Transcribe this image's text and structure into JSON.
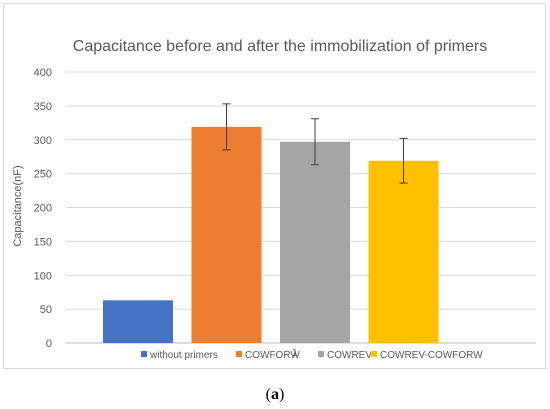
{
  "chart_data": {
    "type": "bar",
    "title": "Capacitance before and after the immobilization of primers",
    "xlabel": "",
    "ylabel": "Capacitance(nF)",
    "ylim": [
      0,
      400
    ],
    "yticks": [
      0,
      50,
      100,
      150,
      200,
      250,
      300,
      350,
      400
    ],
    "grid": true,
    "legend": "bottom",
    "categories": [
      "without primers",
      "COWFORW",
      "COWREV",
      "COWREV-COWFORW"
    ],
    "values": [
      63,
      319,
      297,
      269
    ],
    "errors": [
      null,
      34,
      34,
      33
    ],
    "colors": [
      "#4472c4",
      "#ed7d31",
      "#a5a5a5",
      "#ffc000"
    ],
    "legend_marker_note": "1"
  },
  "caption": {
    "open": "(",
    "letter": "a",
    "close": ")"
  }
}
